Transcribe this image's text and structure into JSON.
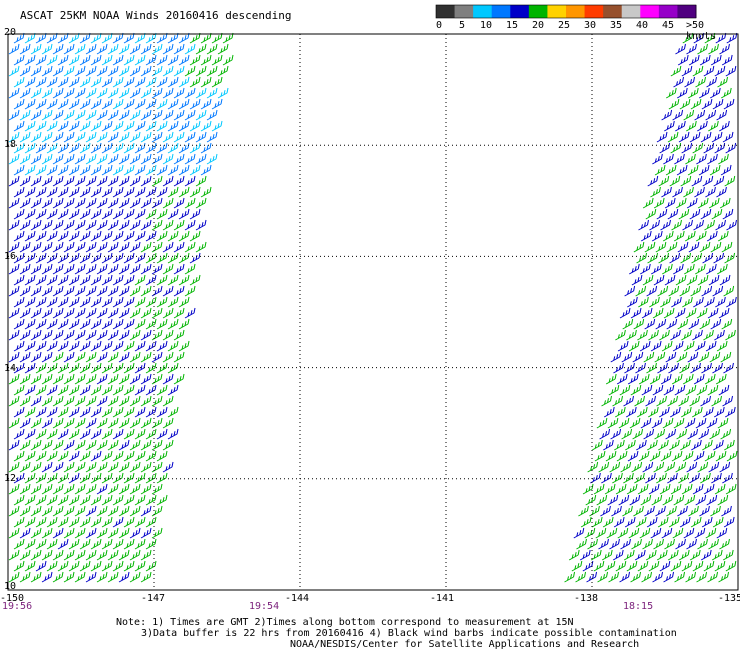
{
  "title": "ASCAT 25KM NOAA Winds 20160416 descending",
  "legend": {
    "labels": [
      "0",
      "5",
      "10",
      "15",
      "20",
      "25",
      "30",
      "35",
      "40",
      "45",
      ">50 knots"
    ],
    "colors": [
      "#303030",
      "#7f7f7f",
      "#00c8ff",
      "#0078ff",
      "#0000c8",
      "#00b400",
      "#ffd200",
      "#ff9600",
      "#ff3c00",
      "#96502d",
      "#c8c8c8",
      "#ff00ff",
      "#9600c8",
      "#500080"
    ]
  },
  "lat_labels": [
    "20",
    "18",
    "16",
    "14",
    "12",
    "10"
  ],
  "lon_labels": [
    "-150",
    "-147",
    "-144",
    "-141",
    "-138",
    "-135"
  ],
  "time_labels": [
    "19:56",
    "19:54",
    "18:15"
  ],
  "notes": [
    "Note: 1) Times are GMT 2)Times along bottom correspond to measurement at 15N",
    "3)Data buffer is 22 hrs from 20160416 4) Black wind barbs indicate possible contamination",
    "NOAA/NESDIS/Center for Satellite Applications and Research"
  ],
  "map": {
    "lat_range": [
      10,
      20
    ],
    "lon_range": [
      -150,
      -135
    ],
    "grid": "dotted",
    "swaths": [
      {
        "name_hidden": "west",
        "lon_west_edge": -150,
        "lon_east_edge_at_20": -145.3,
        "lon_east_edge_at_10": -147
      },
      {
        "name_hidden": "east",
        "lon_west_edge_at_20": -136.2,
        "lon_west_edge_at_10": -138.6,
        "lon_east_edge": -135
      }
    ],
    "barb_colors": {
      "blue_dark": "#0000c8",
      "blue": "#0078ff",
      "cyan": "#00c8ff",
      "green": "#00b400",
      "light_green": "#44dd44"
    }
  }
}
